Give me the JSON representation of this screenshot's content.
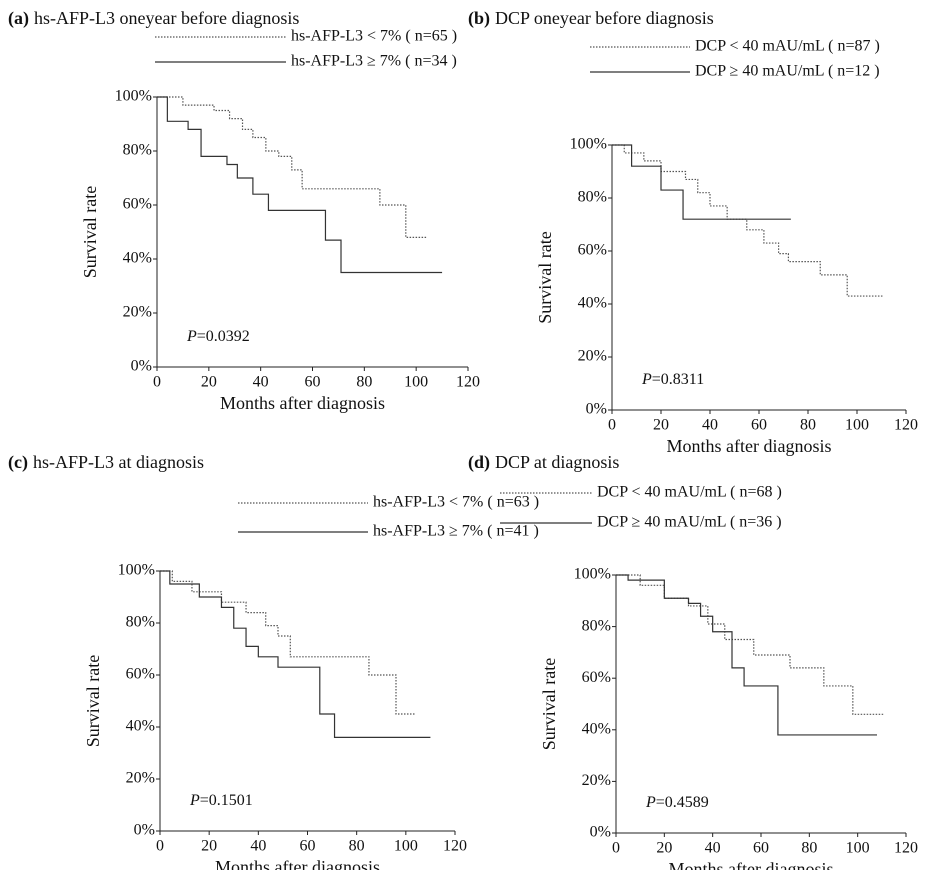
{
  "chart_data": [
    {
      "type": "step",
      "panel": "(a)",
      "title": "hs-AFP-L3 oneyear before diagnosis",
      "x_label": "Months after diagnosis",
      "y_label": "Survival rate",
      "p_label": "P",
      "p_value": "=0.0392",
      "xlim": [
        0,
        120
      ],
      "xticks": [
        0,
        20,
        40,
        60,
        80,
        100,
        120
      ],
      "ylim": [
        0,
        100
      ],
      "yticks": [
        {
          "value": 0,
          "label": "0%"
        },
        {
          "value": 20,
          "label": "20%"
        },
        {
          "value": 40,
          "label": "40%"
        },
        {
          "value": 60,
          "label": "60%"
        },
        {
          "value": 80,
          "label": "80%"
        },
        {
          "value": 100,
          "label": "100%"
        }
      ],
      "series": [
        {
          "name": "hs-AFP-L3 < 7% ( n=65 )",
          "color": "#555555",
          "style": "dotted",
          "x": [
            0,
            10,
            22,
            28,
            33,
            37,
            42,
            47,
            52,
            56,
            86,
            96,
            104
          ],
          "values": [
            100,
            97,
            95,
            92,
            88,
            85,
            80,
            78,
            73,
            66,
            60,
            48,
            48
          ]
        },
        {
          "name": "hs-AFP-L3 ≥ 7% ( n=34 )",
          "color": "#333333",
          "style": "solid",
          "x": [
            0,
            4,
            12,
            17,
            27,
            31,
            37,
            43,
            65,
            71,
            110
          ],
          "values": [
            100,
            91,
            88,
            78,
            75,
            70,
            64,
            58,
            47,
            35,
            35
          ]
        }
      ]
    },
    {
      "type": "step",
      "panel": "(b)",
      "title": "DCP oneyear before diagnosis",
      "x_label": "Months after diagnosis",
      "y_label": "Survival rate",
      "p_label": "P",
      "p_value": "=0.8311",
      "xlim": [
        0,
        120
      ],
      "xticks": [
        0,
        20,
        40,
        60,
        80,
        100,
        120
      ],
      "ylim": [
        0,
        100
      ],
      "yticks": [
        {
          "value": 0,
          "label": "0%"
        },
        {
          "value": 20,
          "label": "20%"
        },
        {
          "value": 40,
          "label": "40%"
        },
        {
          "value": 60,
          "label": "60%"
        },
        {
          "value": 80,
          "label": "80%"
        },
        {
          "value": 100,
          "label": "100%"
        }
      ],
      "series": [
        {
          "name": "DCP < 40 mAU/mL ( n=87 )",
          "color": "#555555",
          "style": "dotted",
          "x": [
            0,
            5,
            13,
            20,
            30,
            35,
            40,
            47,
            55,
            62,
            68,
            72,
            85,
            96,
            111
          ],
          "values": [
            100,
            97,
            94,
            90,
            87,
            82,
            77,
            72,
            68,
            63,
            59,
            56,
            51,
            43,
            43
          ]
        },
        {
          "name": "DCP ≥ 40 mAU/mL ( n=12 )",
          "color": "#333333",
          "style": "solid",
          "x": [
            0,
            8,
            20,
            29,
            73
          ],
          "values": [
            100,
            92,
            83,
            72,
            72
          ]
        }
      ]
    },
    {
      "type": "step",
      "panel": "(c)",
      "title": "hs-AFP-L3 at diagnosis",
      "x_label": "Months after diagnosis",
      "y_label": "Survival rate",
      "p_label": "P",
      "p_value": "=0.1501",
      "xlim": [
        0,
        120
      ],
      "xticks": [
        0,
        20,
        40,
        60,
        80,
        100,
        120
      ],
      "ylim": [
        0,
        100
      ],
      "yticks": [
        {
          "value": 0,
          "label": "0%"
        },
        {
          "value": 20,
          "label": "20%"
        },
        {
          "value": 40,
          "label": "40%"
        },
        {
          "value": 60,
          "label": "60%"
        },
        {
          "value": 80,
          "label": "80%"
        },
        {
          "value": 100,
          "label": "100%"
        }
      ],
      "series": [
        {
          "name": "hs-AFP-L3 < 7% ( n=63 )",
          "color": "#555555",
          "style": "dotted",
          "x": [
            0,
            5,
            13,
            25,
            35,
            43,
            48,
            53,
            85,
            96,
            104
          ],
          "values": [
            100,
            96,
            92,
            88,
            84,
            79,
            75,
            67,
            60,
            45,
            45
          ]
        },
        {
          "name": "hs-AFP-L3 ≥ 7% ( n=41 )",
          "color": "#333333",
          "style": "solid",
          "x": [
            0,
            4,
            16,
            25,
            30,
            35,
            40,
            48,
            65,
            71,
            110
          ],
          "values": [
            100,
            95,
            90,
            86,
            78,
            71,
            67,
            63,
            45,
            36,
            36
          ]
        }
      ]
    },
    {
      "type": "step",
      "panel": "(d)",
      "title": "DCP at diagnosis",
      "x_label": "Months after diagnosis",
      "y_label": "Survival rate",
      "p_label": "P",
      "p_value": "=0.4589",
      "xlim": [
        0,
        120
      ],
      "xticks": [
        0,
        20,
        40,
        60,
        80,
        100,
        120
      ],
      "ylim": [
        0,
        100
      ],
      "yticks": [
        {
          "value": 0,
          "label": "0%"
        },
        {
          "value": 20,
          "label": "20%"
        },
        {
          "value": 40,
          "label": "40%"
        },
        {
          "value": 60,
          "label": "60%"
        },
        {
          "value": 80,
          "label": "80%"
        },
        {
          "value": 100,
          "label": "100%"
        }
      ],
      "series": [
        {
          "name": "DCP < 40 mAU/mL ( n=68 )",
          "color": "#555555",
          "style": "dotted",
          "x": [
            0,
            10,
            20,
            30,
            38,
            45,
            57,
            72,
            86,
            98,
            111
          ],
          "values": [
            100,
            96,
            91,
            88,
            81,
            75,
            69,
            64,
            57,
            46,
            46
          ]
        },
        {
          "name": "DCP ≥ 40 mAU/mL ( n=36 )",
          "color": "#333333",
          "style": "solid",
          "x": [
            0,
            5,
            20,
            30,
            35,
            40,
            48,
            53,
            67,
            108
          ],
          "values": [
            100,
            98,
            91,
            89,
            84,
            78,
            64,
            57,
            38,
            38
          ]
        }
      ]
    }
  ]
}
